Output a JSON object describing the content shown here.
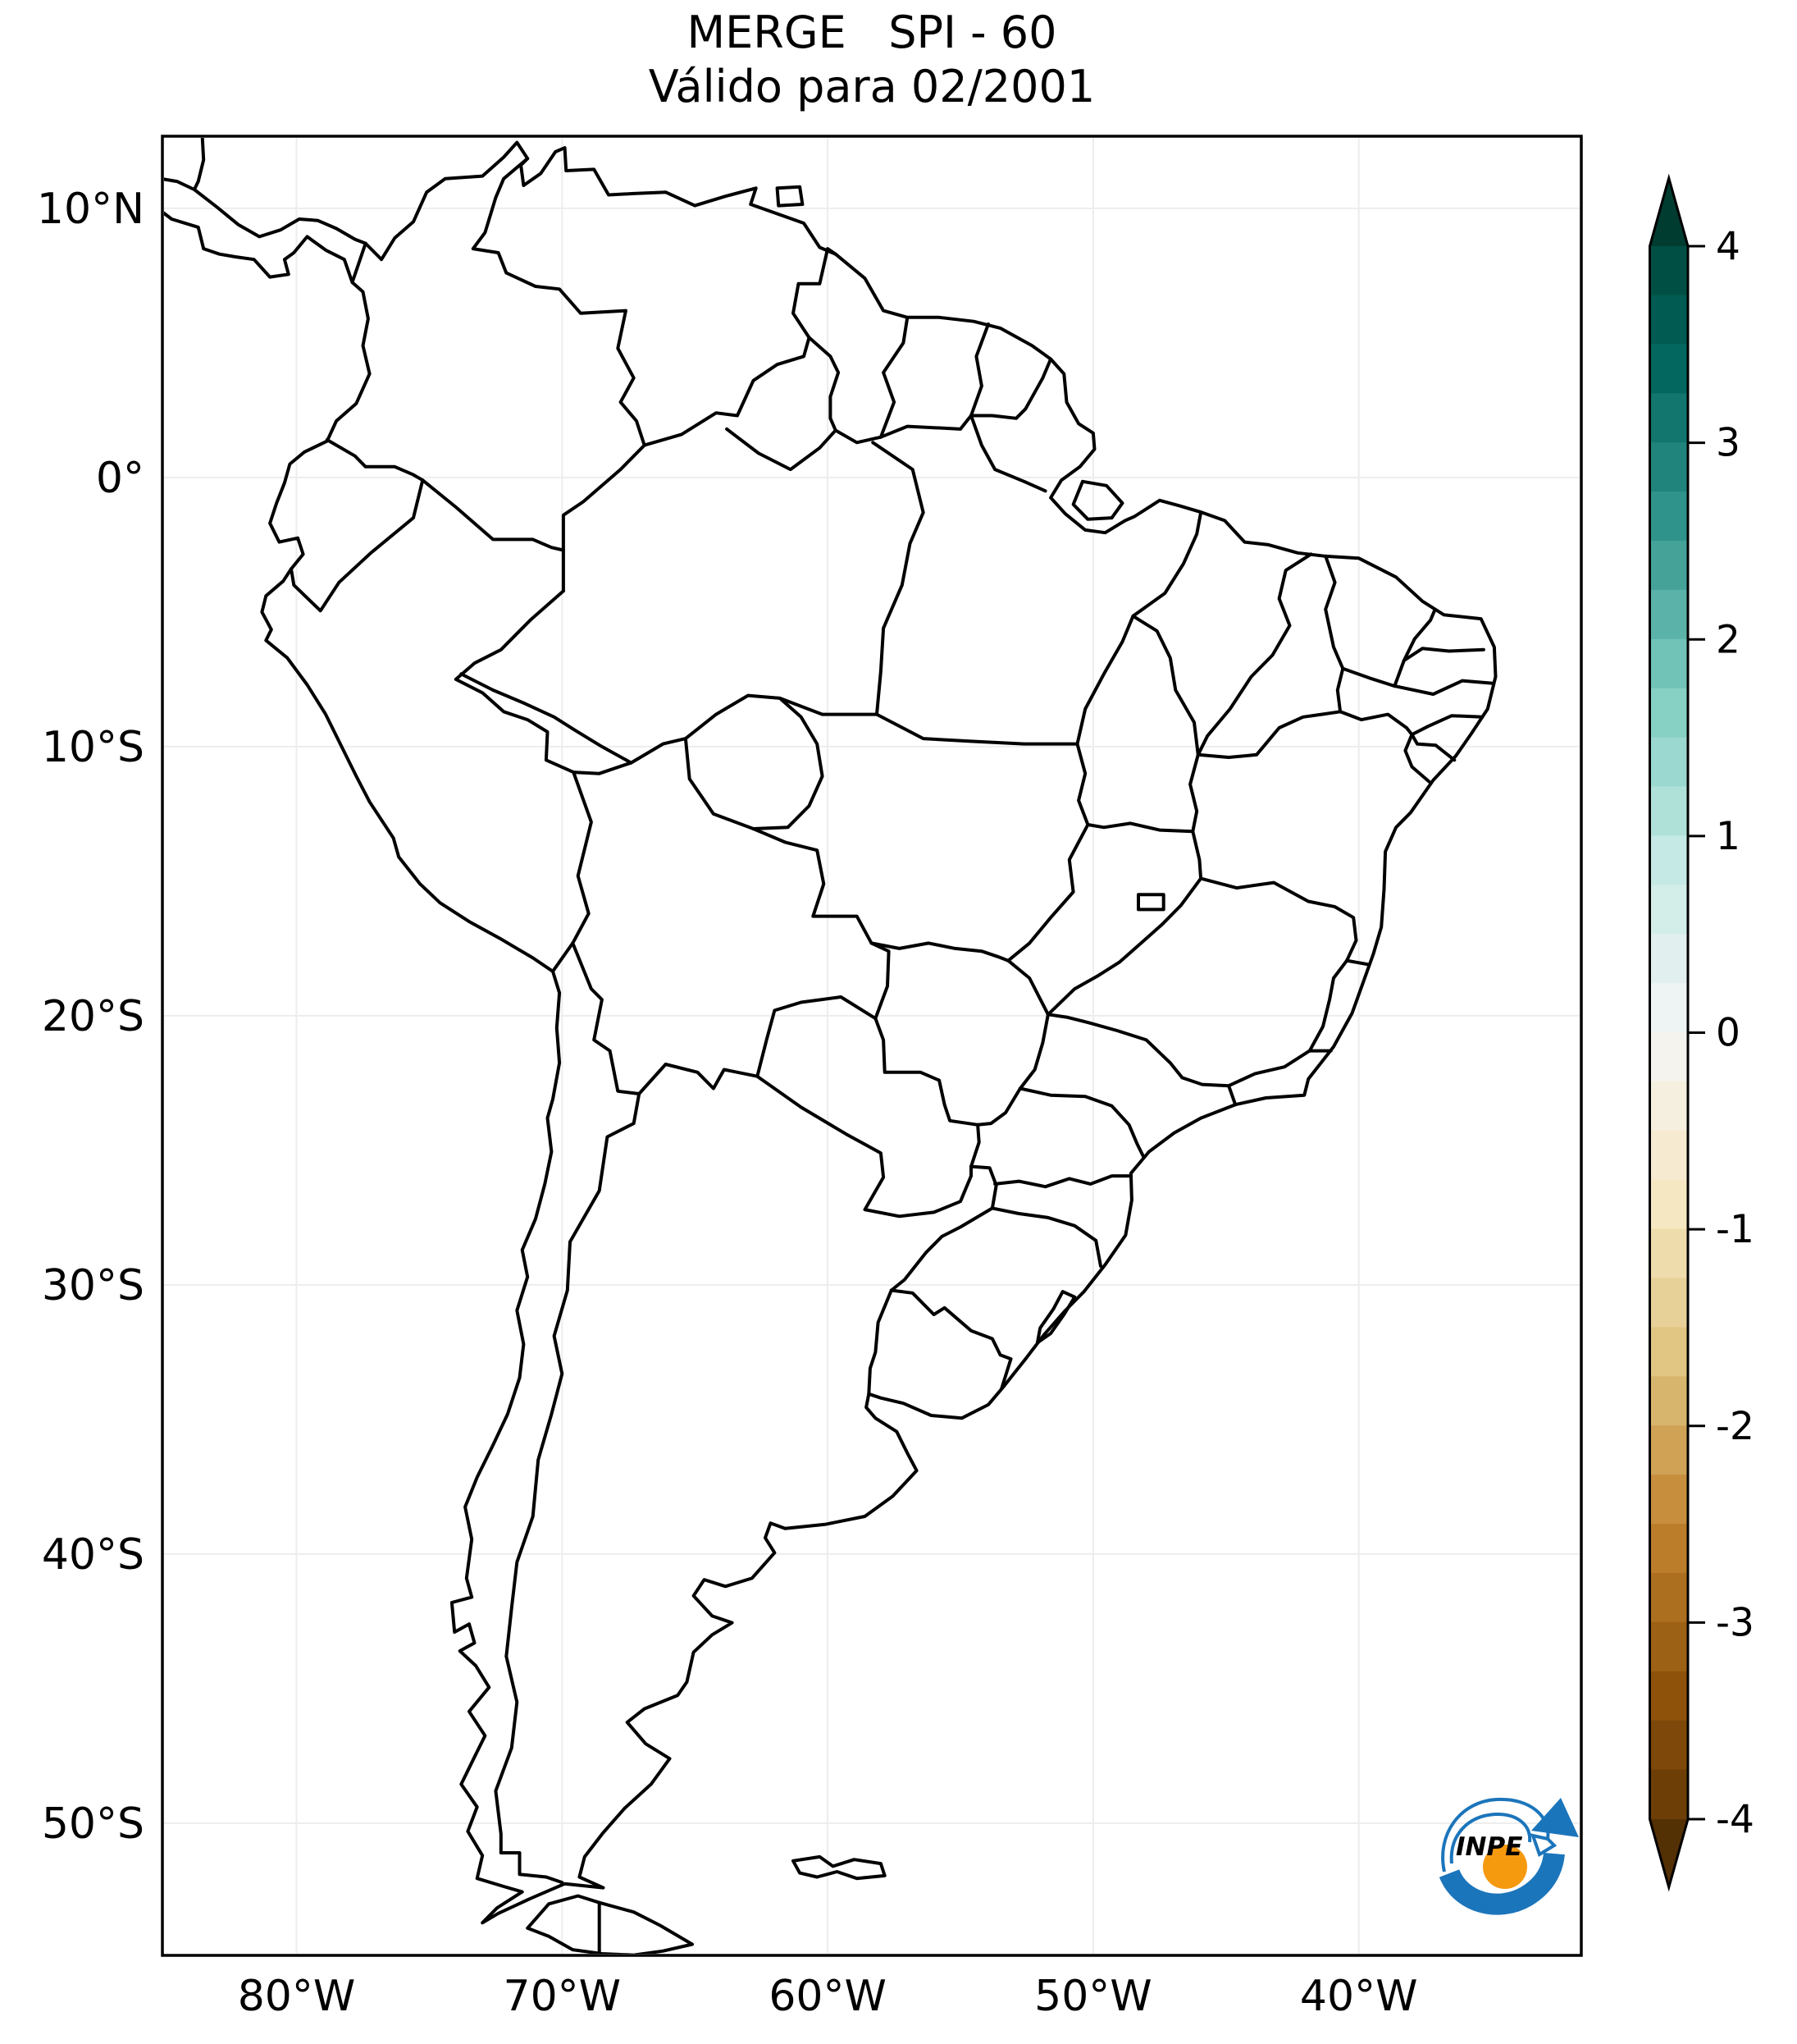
{
  "figure": {
    "kind": "map-figure",
    "source_logo": "INPE"
  },
  "title": {
    "line1": "MERGE   SPI - 60",
    "line2": "Válido para 02/2001"
  },
  "axes": {
    "lat_ticks": [
      {
        "label": "10°N",
        "value": 10
      },
      {
        "label": "0°",
        "value": 0
      },
      {
        "label": "10°S",
        "value": -10
      },
      {
        "label": "20°S",
        "value": -20
      },
      {
        "label": "30°S",
        "value": -30
      },
      {
        "label": "40°S",
        "value": -40
      },
      {
        "label": "50°S",
        "value": -50
      }
    ],
    "lon_ticks": [
      {
        "label": "80°W",
        "value": -80
      },
      {
        "label": "70°W",
        "value": -70
      },
      {
        "label": "60°W",
        "value": -60
      },
      {
        "label": "50°W",
        "value": -50
      },
      {
        "label": "40°W",
        "value": -40
      }
    ]
  },
  "colorbar": {
    "orientation": "vertical",
    "vmin": -4,
    "vmax": 4,
    "step": 0.25,
    "extend": "both",
    "colormap_name": "BrBG",
    "cmap_anchors": [
      "#543005",
      "#8c510a",
      "#bf812d",
      "#dfc27d",
      "#f6e8c3",
      "#f5f5f5",
      "#c7eae5",
      "#80cdc1",
      "#35978f",
      "#01665e",
      "#003c30"
    ],
    "ticks": [
      {
        "label": "4",
        "value": 4
      },
      {
        "label": "3",
        "value": 3
      },
      {
        "label": "2",
        "value": 2
      },
      {
        "label": "1",
        "value": 1
      },
      {
        "label": "0",
        "value": 0
      },
      {
        "label": "-1",
        "value": -1
      },
      {
        "label": "-2",
        "value": -2
      },
      {
        "label": "-3",
        "value": -3
      },
      {
        "label": "-4",
        "value": -4
      }
    ]
  },
  "logo": {
    "text": "INPE",
    "blue": "#1b75bb",
    "orange": "#f5990f"
  },
  "style": {
    "line_color": "#000000",
    "grid_color": "#ededed",
    "background": "#ffffff",
    "frame_color": "#000000"
  }
}
